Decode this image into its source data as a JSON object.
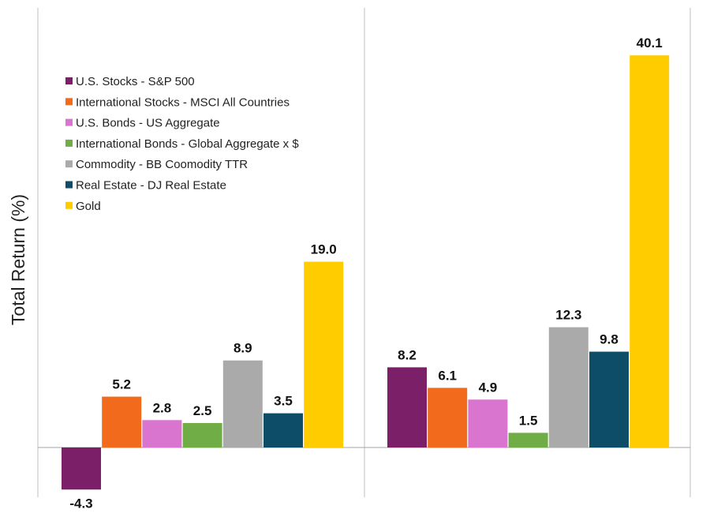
{
  "chart_data": {
    "type": "bar",
    "ylabel": "Total Return (%)",
    "ylim": [
      -5,
      44
    ],
    "grid": false,
    "legend_position": "top-left",
    "series": [
      {
        "name": "U.S. Stocks -  S&P 500",
        "color": "#7b2068"
      },
      {
        "name": "International Stocks - MSCI All Countries",
        "color": "#f26a1b"
      },
      {
        "name": "U.S. Bonds - US Aggregate",
        "color": "#d974cf"
      },
      {
        "name": "International Bonds - Global Aggregate x $",
        "color": "#70ad47"
      },
      {
        "name": "Commodity - BB Coomodity TTR",
        "color": "#aaaaaa"
      },
      {
        "name": "Real Estate - DJ Real Estate",
        "color": "#0e4d68"
      },
      {
        "name": "Gold",
        "color": "#ffcc00"
      }
    ],
    "groups": [
      {
        "values": [
          -4.3,
          5.2,
          2.8,
          2.5,
          8.9,
          3.5,
          19.0
        ],
        "labels": [
          "-4.3",
          "5.2",
          "2.8",
          "2.5",
          "8.9",
          "3.5",
          "19.0"
        ]
      },
      {
        "values": [
          8.2,
          6.1,
          4.9,
          1.5,
          12.3,
          9.8,
          40.1
        ],
        "labels": [
          "8.2",
          "6.1",
          "4.9",
          "1.5",
          "12.3",
          "9.8",
          "40.1"
        ]
      }
    ]
  }
}
